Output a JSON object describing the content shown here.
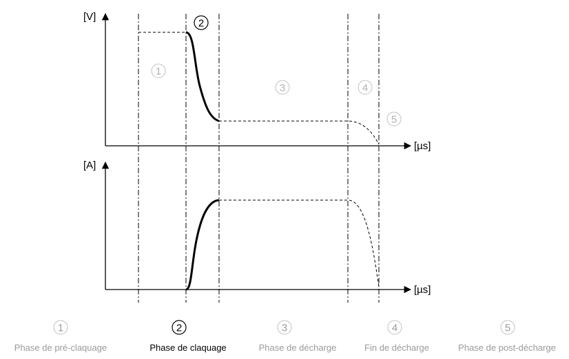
{
  "axes": {
    "top_y_label": "[V]",
    "bottom_y_label": "[A]",
    "x_label": "[µs]"
  },
  "plot_markers": [
    "1",
    "2",
    "3",
    "4",
    "5"
  ],
  "phases": [
    {
      "number": "1",
      "label": "Phase de pré-claquage",
      "active": false
    },
    {
      "number": "2",
      "label": "Phase de claquage",
      "active": true
    },
    {
      "number": "3",
      "label": "Phase de décharge",
      "active": false
    },
    {
      "number": "4",
      "label": "Fin de décharge",
      "active": false
    },
    {
      "number": "5",
      "label": "Phase de post-décharge",
      "active": false
    }
  ],
  "colors": {
    "active": "#000000",
    "inactive": "#9a9a9a",
    "inactive_circle": "#c0c0c0",
    "lines": "#000000"
  }
}
